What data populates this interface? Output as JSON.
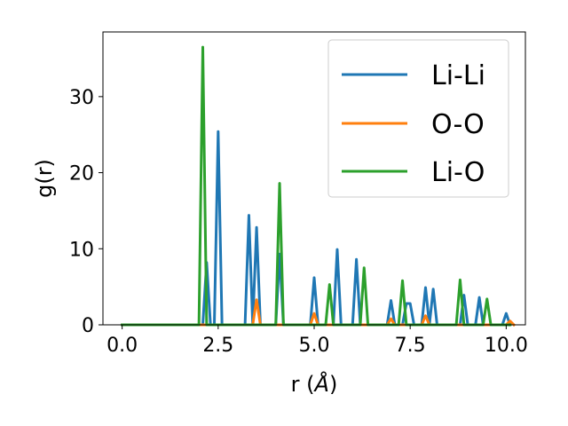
{
  "chart_data": {
    "type": "line",
    "xlabel": "r (",
    "xlabel_symbol": "Å",
    "xlabel_close": ")",
    "ylabel": "g(r)",
    "xlim": [
      -0.5,
      10.5
    ],
    "ylim": [
      0,
      38.5
    ],
    "xticks": [
      0.0,
      2.5,
      5.0,
      7.5,
      10.0
    ],
    "xtick_labels": [
      "0.0",
      "2.5",
      "5.0",
      "7.5",
      "10.0"
    ],
    "yticks": [
      0,
      10,
      20,
      30
    ],
    "ytick_labels": [
      "0",
      "10",
      "20",
      "30"
    ],
    "grid": false,
    "legend_position": "top-right",
    "series": [
      {
        "name": "Li-Li",
        "color": "#1f77b4",
        "points": [
          [
            0.0,
            0
          ],
          [
            2.1,
            0
          ],
          [
            2.2,
            8.2
          ],
          [
            2.3,
            0
          ],
          [
            2.4,
            0
          ],
          [
            2.5,
            25.4
          ],
          [
            2.6,
            0
          ],
          [
            3.2,
            0
          ],
          [
            3.3,
            14.4
          ],
          [
            3.4,
            0
          ],
          [
            3.5,
            12.8
          ],
          [
            3.6,
            0
          ],
          [
            4.0,
            0
          ],
          [
            4.1,
            9.3
          ],
          [
            4.2,
            0
          ],
          [
            4.9,
            0
          ],
          [
            5.0,
            6.2
          ],
          [
            5.1,
            0
          ],
          [
            5.5,
            0
          ],
          [
            5.6,
            9.9
          ],
          [
            5.7,
            0
          ],
          [
            6.0,
            0
          ],
          [
            6.1,
            8.6
          ],
          [
            6.2,
            0
          ],
          [
            6.9,
            0
          ],
          [
            7.0,
            3.2
          ],
          [
            7.1,
            0
          ],
          [
            7.3,
            0
          ],
          [
            7.4,
            2.8
          ],
          [
            7.5,
            2.8
          ],
          [
            7.6,
            0
          ],
          [
            7.8,
            0
          ],
          [
            7.9,
            4.9
          ],
          [
            8.0,
            0
          ],
          [
            8.1,
            4.7
          ],
          [
            8.2,
            0
          ],
          [
            8.8,
            0
          ],
          [
            8.9,
            3.9
          ],
          [
            9.0,
            0
          ],
          [
            9.2,
            0
          ],
          [
            9.3,
            3.6
          ],
          [
            9.4,
            0
          ],
          [
            9.9,
            0
          ],
          [
            10.0,
            1.5
          ],
          [
            10.1,
            0
          ]
        ]
      },
      {
        "name": "O-O",
        "color": "#ff7f0e",
        "points": [
          [
            0.0,
            0
          ],
          [
            3.4,
            0
          ],
          [
            3.5,
            3.3
          ],
          [
            3.6,
            0
          ],
          [
            4.9,
            0
          ],
          [
            5.0,
            1.5
          ],
          [
            5.1,
            0
          ],
          [
            6.9,
            0
          ],
          [
            7.0,
            0.8
          ],
          [
            7.1,
            0
          ],
          [
            7.8,
            0
          ],
          [
            7.9,
            1.2
          ],
          [
            8.0,
            0
          ],
          [
            10.0,
            0
          ],
          [
            10.1,
            0.5
          ],
          [
            10.2,
            0
          ]
        ]
      },
      {
        "name": "Li-O",
        "color": "#2ca02c",
        "points": [
          [
            0.0,
            0
          ],
          [
            2.0,
            0
          ],
          [
            2.1,
            36.5
          ],
          [
            2.2,
            0
          ],
          [
            4.0,
            0
          ],
          [
            4.1,
            18.6
          ],
          [
            4.2,
            0
          ],
          [
            5.3,
            0
          ],
          [
            5.4,
            5.3
          ],
          [
            5.5,
            0
          ],
          [
            6.2,
            0
          ],
          [
            6.3,
            7.5
          ],
          [
            6.4,
            0
          ],
          [
            7.2,
            0
          ],
          [
            7.3,
            5.8
          ],
          [
            7.4,
            0
          ],
          [
            8.7,
            0
          ],
          [
            8.8,
            5.9
          ],
          [
            8.9,
            0
          ],
          [
            9.4,
            0
          ],
          [
            9.5,
            3.4
          ],
          [
            9.6,
            0
          ],
          [
            10.1,
            0
          ]
        ]
      }
    ]
  }
}
